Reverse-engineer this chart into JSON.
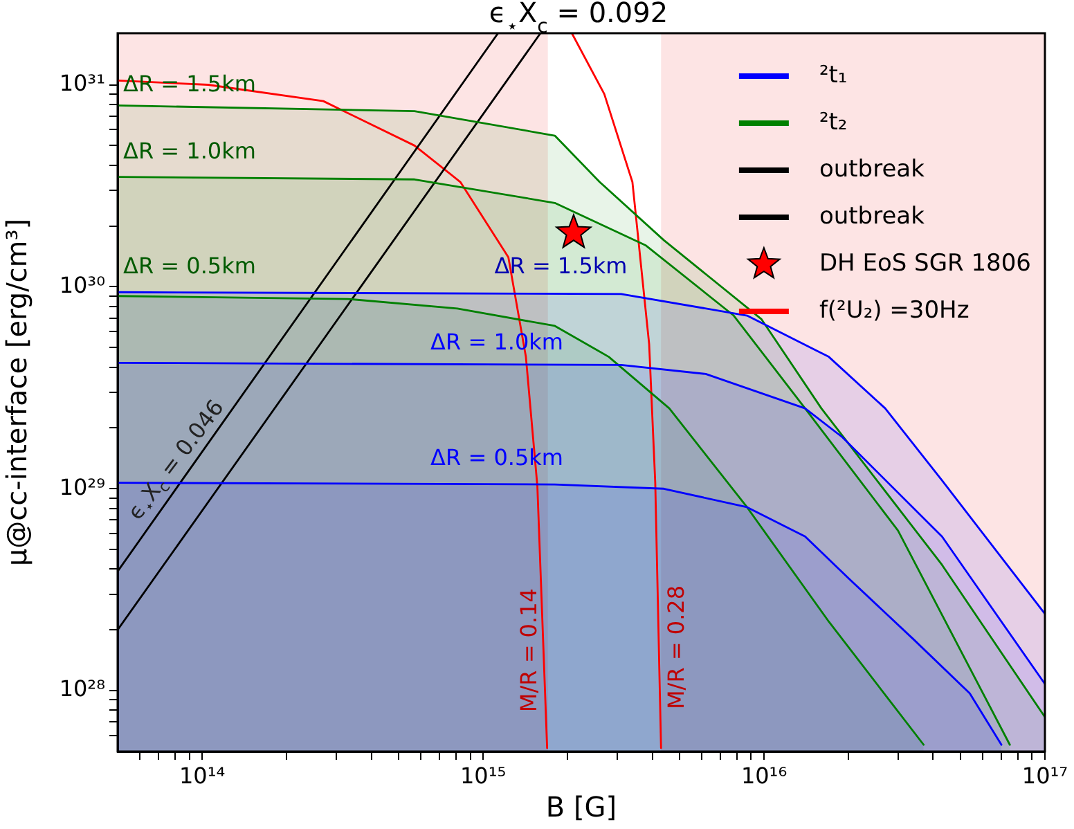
{
  "chart_data": {
    "type": "area",
    "xlabel": "B [G]",
    "ylabel": "μ@cc-interface [erg/cm³]",
    "log": "xy",
    "legend": "top right",
    "xlim": [
      50000000000000.0,
      1e+17
    ],
    "ylim": [
      5e+27,
      1.8e+31
    ],
    "xticks": [
      {
        "value": 60000000000000.0,
        "label": null
      },
      {
        "value": 70000000000000.0,
        "label": null
      },
      {
        "value": 80000000000000.0,
        "label": null
      },
      {
        "value": 90000000000000.0,
        "label": null
      },
      {
        "value": 100000000000000.0,
        "label": "10¹⁴"
      },
      {
        "value": 200000000000000.0,
        "label": null
      },
      {
        "value": 300000000000000.0,
        "label": null
      },
      {
        "value": 400000000000000.0,
        "label": null
      },
      {
        "value": 500000000000000.0,
        "label": null
      },
      {
        "value": 600000000000000.0,
        "label": null
      },
      {
        "value": 700000000000000.0,
        "label": null
      },
      {
        "value": 800000000000000.0,
        "label": null
      },
      {
        "value": 900000000000000.0,
        "label": null
      },
      {
        "value": 1000000000000000.0,
        "label": "10¹⁵"
      },
      {
        "value": 2000000000000000.0,
        "label": null
      },
      {
        "value": 3000000000000000.0,
        "label": null
      },
      {
        "value": 4000000000000000.0,
        "label": null
      },
      {
        "value": 5000000000000000.0,
        "label": null
      },
      {
        "value": 6000000000000000.0,
        "label": null
      },
      {
        "value": 7000000000000000.0,
        "label": null
      },
      {
        "value": 8000000000000000.0,
        "label": null
      },
      {
        "value": 9000000000000000.0,
        "label": null
      },
      {
        "value": 1e+16,
        "label": "10¹⁶"
      },
      {
        "value": 2e+16,
        "label": null
      },
      {
        "value": 3e+16,
        "label": null
      },
      {
        "value": 4e+16,
        "label": null
      },
      {
        "value": 5e+16,
        "label": null
      },
      {
        "value": 6e+16,
        "label": null
      },
      {
        "value": 7e+16,
        "label": null
      },
      {
        "value": 8e+16,
        "label": null
      },
      {
        "value": 9e+16,
        "label": null
      },
      {
        "value": 1e+17,
        "label": "10¹⁷"
      }
    ],
    "yticks": [
      {
        "value": 6e+27,
        "label": null
      },
      {
        "value": 7e+27,
        "label": null
      },
      {
        "value": 8e+27,
        "label": null
      },
      {
        "value": 9e+27,
        "label": null
      },
      {
        "value": 1e+28,
        "label": "10²⁸"
      },
      {
        "value": 2e+28,
        "label": null
      },
      {
        "value": 3e+28,
        "label": null
      },
      {
        "value": 4e+28,
        "label": null
      },
      {
        "value": 5e+28,
        "label": null
      },
      {
        "value": 6e+28,
        "label": null
      },
      {
        "value": 7e+28,
        "label": null
      },
      {
        "value": 8e+28,
        "label": null
      },
      {
        "value": 9e+28,
        "label": null
      },
      {
        "value": 1e+29,
        "label": "10²⁹"
      },
      {
        "value": 2e+29,
        "label": null
      },
      {
        "value": 3e+29,
        "label": null
      },
      {
        "value": 4e+29,
        "label": null
      },
      {
        "value": 5e+29,
        "label": null
      },
      {
        "value": 6e+29,
        "label": null
      },
      {
        "value": 7e+29,
        "label": null
      },
      {
        "value": 8e+29,
        "label": null
      },
      {
        "value": 9e+29,
        "label": null
      },
      {
        "value": 1e+30,
        "label": "10³⁰"
      },
      {
        "value": 2e+30,
        "label": null
      },
      {
        "value": 3e+30,
        "label": null
      },
      {
        "value": 4e+30,
        "label": null
      },
      {
        "value": 5e+30,
        "label": null
      },
      {
        "value": 6e+30,
        "label": null
      },
      {
        "value": 7e+30,
        "label": null
      },
      {
        "value": 8e+30,
        "label": null
      },
      {
        "value": 9e+30,
        "label": null
      },
      {
        "value": 1e+31,
        "label": "10³¹"
      }
    ],
    "bands": [
      {
        "axis": "x",
        "from": 50000000000000.0,
        "to": 1700000000000000.0,
        "color": "#fde4e4"
      },
      {
        "axis": "x",
        "from": 4300000000000000.0,
        "to": 1e+17,
        "color": "#fde4e4"
      }
    ],
    "series": [
      {
        "name": "²t₁",
        "color": "#0000ff",
        "x": [
          50000000000000.0,
          1800000000000000.0,
          4400000000000000.0,
          8700000000000000.0,
          1.4e+16,
          2e+16,
          3.4e+16,
          5.4e+16,
          7e+16
        ],
        "values": [
          1.07e+29,
          1.05e+29,
          1e+29,
          8.1e+28,
          5.8e+28,
          3.6e+28,
          1.8e+28,
          9.7e+27,
          5.4e+27
        ]
      },
      {
        "color": "#0000ff",
        "x": [
          50000000000000.0,
          3100000000000000.0,
          6200000000000000.0,
          1.4e+16,
          1.9e+16,
          4.3e+16,
          1e+17
        ],
        "values": [
          4.2e+29,
          4.1e+29,
          3.7e+29,
          2.5e+29,
          1.8e+29,
          5.8e+28,
          1.08e+28
        ]
      },
      {
        "color": "#0000ff",
        "x": [
          50000000000000.0,
          3100000000000000.0,
          8700000000000000.0,
          1.7e+16,
          2.7e+16,
          4.3e+16,
          1e+17
        ],
        "values": [
          9.4e+29,
          9.2e+29,
          7.2e+29,
          4.5e+29,
          2.5e+29,
          1.1e+29,
          2.4e+28
        ]
      },
      {
        "name": "²t₂",
        "color": "#008000",
        "x": [
          50000000000000.0,
          330000000000000.0,
          810000000000000.0,
          1800000000000000.0,
          2800000000000000.0,
          4600000000000000.0,
          8700000000000000.0,
          1.7e+16,
          3.7e+16
        ],
        "values": [
          9e+29,
          8.7e+29,
          7.8e+29,
          6.4e+29,
          4.5e+29,
          2.5e+29,
          8.1e+28,
          2.2e+28,
          5.4e+27
        ]
      },
      {
        "color": "#008000",
        "x": [
          50000000000000.0,
          570000000000000.0,
          1800000000000000.0,
          3800000000000000.0,
          7800000000000000.0,
          1.4e+16,
          3e+16,
          7.5e+16
        ],
        "values": [
          3.5e+30,
          3.4e+30,
          2.6e+30,
          1.6e+30,
          7.2e+29,
          2.5e+29,
          6.2e+28,
          5.4e+27
        ]
      },
      {
        "color": "#008000",
        "x": [
          50000000000000.0,
          570000000000000.0,
          1800000000000000.0,
          2600000000000000.0,
          4400000000000000.0,
          9800000000000000.0,
          1.6e+16,
          4.3e+16,
          1e+17
        ],
        "values": [
          7.9e+30,
          7.4e+30,
          5.6e+30,
          3.3e+30,
          1.7e+30,
          6.9e+29,
          2.5e+29,
          4.2e+28,
          7.4e+27
        ]
      },
      {
        "name": "outbreak",
        "type": "line",
        "color": "#000000",
        "x": [
          50000000000000.0,
          1130000000000000.0
        ],
        "values": [
          3.9e+28,
          1.8e+31
        ]
      },
      {
        "name": "outbreak",
        "type": "line",
        "color": "#000000",
        "x": [
          50000000000000.0,
          1600000000000000.0
        ],
        "values": [
          2e+28,
          1.8e+31
        ]
      },
      {
        "name": "DH EoS SGR 1806",
        "type": "scatter",
        "marker": "star",
        "color": "#ff0000",
        "x": [
          2100000000000000.0
        ],
        "values": [
          1.85e+30
        ]
      },
      {
        "name": "f(²U₂) =30Hz",
        "type": "line",
        "color": "#ff0000",
        "x": [
          50000000000000.0,
          105000000000000.0,
          270000000000000.0,
          570000000000000.0,
          830000000000000.0,
          1230000000000000.0,
          1420000000000000.0,
          1560000000000000.0,
          1690000000000000.0
        ],
        "values": [
          1.05e+31,
          1e+31,
          8.3e+30,
          5e+30,
          3.3e+30,
          1.4e+30,
          4.5e+29,
          1.03e+29,
          5.2e+27
        ]
      },
      {
        "type": "line",
        "color": "#ff0000",
        "x": [
          2070000000000000.0,
          2700000000000000.0,
          3400000000000000.0,
          3900000000000000.0,
          4100000000000000.0,
          4300000000000000.0
        ],
        "values": [
          1.8e+31,
          9e+30,
          3.3e+30,
          5.2e+29,
          1.07e+29,
          5.2e+27
        ]
      }
    ],
    "annotations": [
      "ϵ$_{⋆}$X$_{c}$ = 0.092",
      "ϵ$_{⋆}$X$_{c}$ = 0.046",
      "ΔR = 1.5km",
      "ΔR = 1.0km",
      "ΔR = 0.5km",
      "ΔR = 1.5km",
      "ΔR = 1.0km",
      "ΔR = 0.5km",
      "M/R = 0.14",
      "M/R = 0.28"
    ]
  }
}
